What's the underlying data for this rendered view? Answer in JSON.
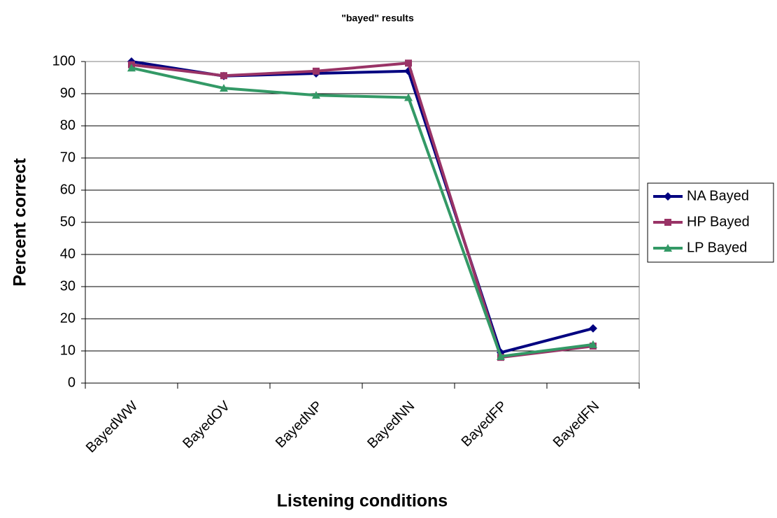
{
  "chart_data": {
    "type": "line",
    "title": "\"bayed\" results",
    "x_label": "Listening conditions",
    "y_label": "Percent correct",
    "categories": [
      "BayedWW",
      "BayedOV",
      "BayedNP",
      "BayedNN",
      "BayedFP",
      "BayedFN"
    ],
    "series": [
      {
        "name": "NA Bayed",
        "color": "#000080",
        "marker": "diamond",
        "values": [
          100,
          95.5,
          96.3,
          97,
          9.5,
          17
        ]
      },
      {
        "name": "HP Bayed",
        "color": "#993366",
        "marker": "square",
        "values": [
          99,
          95.6,
          97,
          99.5,
          8,
          11.5
        ]
      },
      {
        "name": "LP Bayed",
        "color": "#339966",
        "marker": "triangle",
        "values": [
          98,
          91.7,
          89.5,
          88.8,
          8.3,
          12
        ]
      }
    ],
    "ylim": [
      0,
      100
    ],
    "yticks": [
      0,
      10,
      20,
      30,
      40,
      50,
      60,
      70,
      80,
      90,
      100
    ],
    "grid": true,
    "legend": "right"
  }
}
